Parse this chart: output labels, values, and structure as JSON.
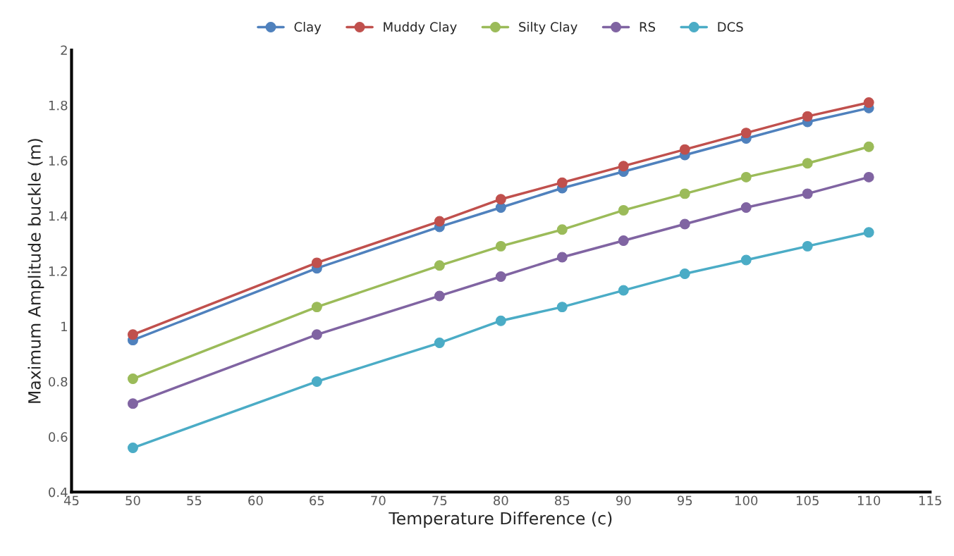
{
  "chart_data": {
    "type": "line",
    "xlabel": "Temperature Difference (c)",
    "ylabel": "Maximum Amplitude buckle (m)",
    "x": [
      50,
      65,
      75,
      80,
      85,
      90,
      95,
      100,
      105,
      110
    ],
    "series": [
      {
        "name": "Clay",
        "color": "#4f81bd",
        "values": [
          0.95,
          1.21,
          1.36,
          1.43,
          1.5,
          1.56,
          1.62,
          1.68,
          1.74,
          1.79
        ]
      },
      {
        "name": "Muddy Clay",
        "color": "#c0504d",
        "values": [
          0.97,
          1.23,
          1.38,
          1.46,
          1.52,
          1.58,
          1.64,
          1.7,
          1.76,
          1.81
        ]
      },
      {
        "name": "Silty Clay",
        "color": "#9bbb59",
        "values": [
          0.81,
          1.07,
          1.22,
          1.29,
          1.35,
          1.42,
          1.48,
          1.54,
          1.59,
          1.65
        ]
      },
      {
        "name": "RS",
        "color": "#8064a2",
        "values": [
          0.72,
          0.97,
          1.11,
          1.18,
          1.25,
          1.31,
          1.37,
          1.43,
          1.48,
          1.54
        ]
      },
      {
        "name": "DCS",
        "color": "#4bacc6",
        "values": [
          0.56,
          0.8,
          0.94,
          1.02,
          1.07,
          1.13,
          1.19,
          1.24,
          1.29,
          1.34
        ]
      }
    ],
    "xlim": [
      45,
      115
    ],
    "xticks": [
      45,
      50,
      55,
      60,
      65,
      70,
      75,
      80,
      85,
      90,
      95,
      100,
      105,
      110,
      115
    ],
    "ylim": [
      0.4,
      2
    ],
    "yticks": [
      0.4,
      0.6,
      0.8,
      1,
      1.2,
      1.4,
      1.6,
      1.8,
      2
    ],
    "marker": "circle",
    "line_style": "solid",
    "grid": false,
    "legend": "top"
  }
}
